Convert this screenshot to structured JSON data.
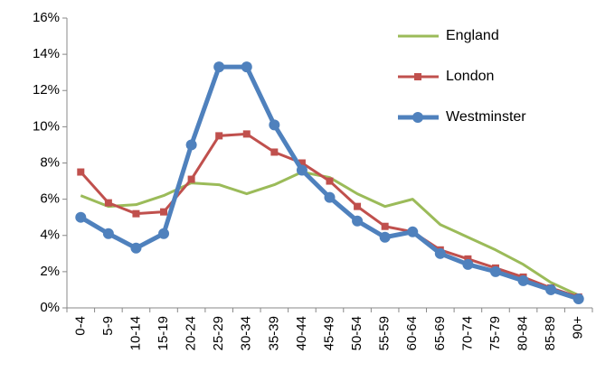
{
  "chart_data": {
    "type": "line",
    "categories": [
      "0-4",
      "5-9",
      "10-14",
      "15-19",
      "20-24",
      "25-29",
      "30-34",
      "35-39",
      "40-44",
      "45-49",
      "50-54",
      "55-59",
      "60-64",
      "65-69",
      "70-74",
      "75-79",
      "80-84",
      "85-89",
      "90+"
    ],
    "series": [
      {
        "name": "England",
        "color": "#9bbb59",
        "values": [
          6.2,
          5.6,
          5.7,
          6.2,
          6.9,
          6.8,
          6.3,
          6.8,
          7.5,
          7.2,
          6.3,
          5.6,
          6.0,
          4.6,
          3.9,
          3.2,
          2.4,
          1.4,
          0.7
        ]
      },
      {
        "name": "London",
        "color": "#c0504d",
        "values": [
          7.5,
          5.8,
          5.2,
          5.3,
          7.1,
          9.5,
          9.6,
          8.6,
          8.0,
          7.0,
          5.6,
          4.5,
          4.2,
          3.2,
          2.7,
          2.2,
          1.7,
          1.1,
          0.6
        ]
      },
      {
        "name": "Westminster",
        "color": "#4f81bd",
        "values": [
          5.0,
          4.1,
          3.3,
          4.1,
          9.0,
          13.3,
          13.3,
          10.1,
          7.6,
          6.1,
          4.8,
          3.9,
          4.2,
          3.0,
          2.4,
          2.0,
          1.5,
          1.0,
          0.5
        ]
      }
    ],
    "ylim": [
      0,
      16
    ],
    "yticks": [
      {
        "value": 0,
        "label": "0%"
      },
      {
        "value": 2,
        "label": "2%"
      },
      {
        "value": 4,
        "label": "4%"
      },
      {
        "value": 6,
        "label": "6%"
      },
      {
        "value": 8,
        "label": "8%"
      },
      {
        "value": 10,
        "label": "10%"
      },
      {
        "value": 12,
        "label": "12%"
      },
      {
        "value": 14,
        "label": "14%"
      },
      {
        "value": 16,
        "label": "16%"
      }
    ],
    "grid": false
  }
}
